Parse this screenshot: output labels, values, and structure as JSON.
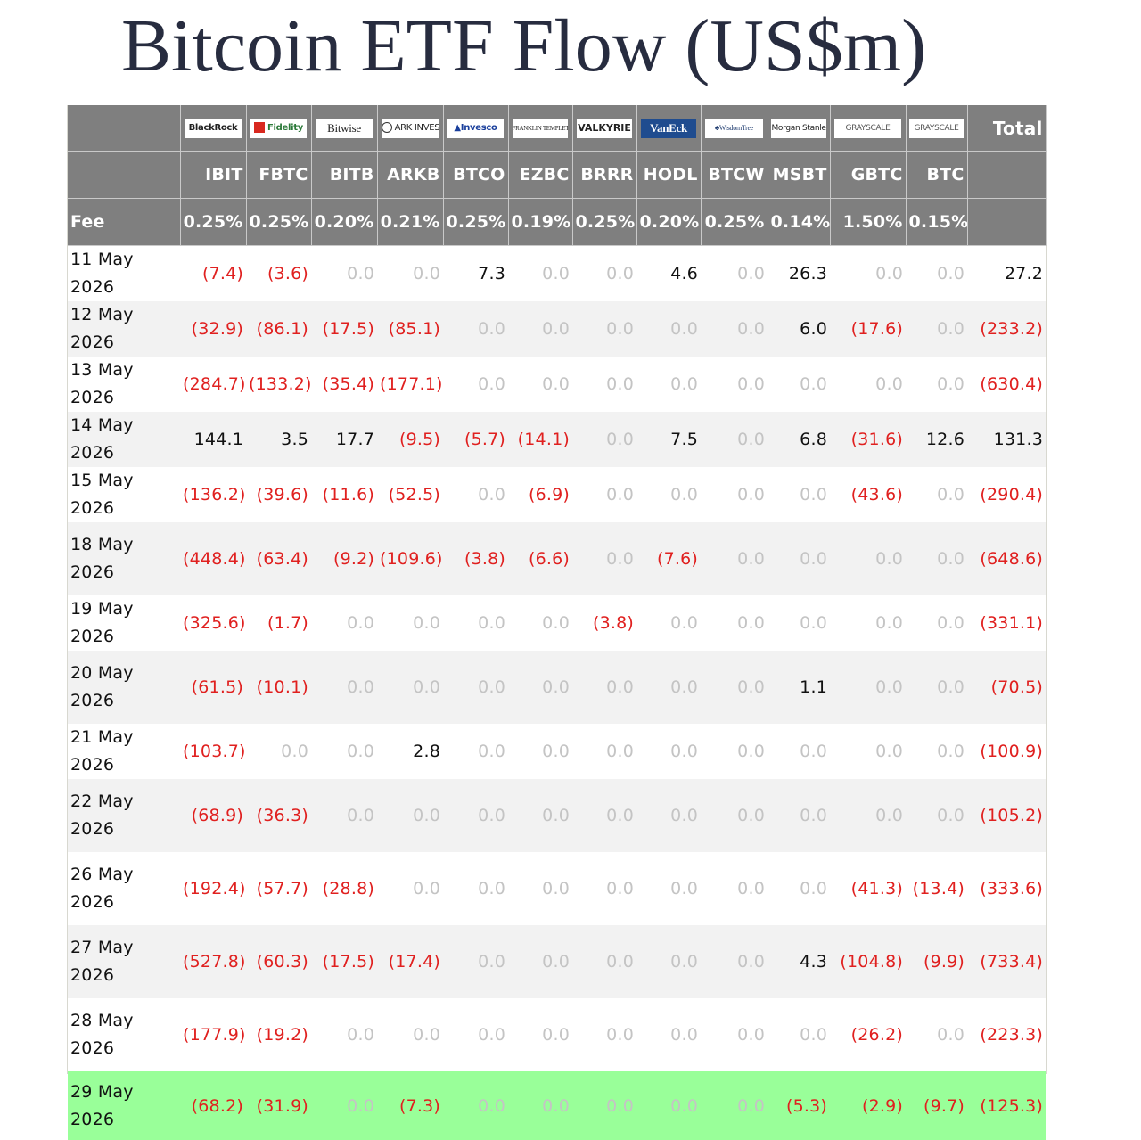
{
  "title": "Bitcoin ETF Flow (US$m)",
  "colors": {
    "header_bg": "#7f7f7f",
    "negative": "#e0201f",
    "zero": "#c4c4c4",
    "highlight_row": "#99ff99",
    "title": "#272c3f"
  },
  "header": {
    "fee_label": "Fee",
    "total_label": "Total",
    "issuers": [
      "BlackRock",
      "Fidelity",
      "Bitwise",
      "ARK INVEST",
      "Invesco",
      "FRANKLIN TEMPLETON",
      "VALKYRIE",
      "VanEck",
      "WisdomTree",
      "Morgan Stanley",
      "GRAYSCALE",
      "GRAYSCALE"
    ],
    "tickers": [
      "IBIT",
      "FBTC",
      "BITB",
      "ARKB",
      "BTCO",
      "EZBC",
      "BRRR",
      "HODL",
      "BTCW",
      "MSBT",
      "GBTC",
      "BTC"
    ],
    "fees": [
      "0.25%",
      "0.25%",
      "0.20%",
      "0.21%",
      "0.25%",
      "0.19%",
      "0.25%",
      "0.20%",
      "0.25%",
      "0.14%",
      "1.50%",
      "0.15%"
    ]
  },
  "rows": [
    {
      "date": "11 May 2026",
      "values": [
        "(7.4)",
        "(3.6)",
        "0.0",
        "0.0",
        "7.3",
        "0.0",
        "0.0",
        "4.6",
        "0.0",
        "26.3",
        "0.0",
        "0.0"
      ],
      "total": "27.2"
    },
    {
      "date": "12 May 2026",
      "values": [
        "(32.9)",
        "(86.1)",
        "(17.5)",
        "(85.1)",
        "0.0",
        "0.0",
        "0.0",
        "0.0",
        "0.0",
        "6.0",
        "(17.6)",
        "0.0"
      ],
      "total": "(233.2)"
    },
    {
      "date": "13 May 2026",
      "values": [
        "(284.7)",
        "(133.2)",
        "(35.4)",
        "(177.1)",
        "0.0",
        "0.0",
        "0.0",
        "0.0",
        "0.0",
        "0.0",
        "0.0",
        "0.0"
      ],
      "total": "(630.4)"
    },
    {
      "date": "14 May 2026",
      "values": [
        "144.1",
        "3.5",
        "17.7",
        "(9.5)",
        "(5.7)",
        "(14.1)",
        "0.0",
        "7.5",
        "0.0",
        "6.8",
        "(31.6)",
        "12.6"
      ],
      "total": "131.3"
    },
    {
      "date": "15 May 2026",
      "values": [
        "(136.2)",
        "(39.6)",
        "(11.6)",
        "(52.5)",
        "0.0",
        "(6.9)",
        "0.0",
        "0.0",
        "0.0",
        "0.0",
        "(43.6)",
        "0.0"
      ],
      "total": "(290.4)"
    },
    {
      "date": "18 May 2026",
      "values": [
        "(448.4)",
        "(63.4)",
        "(9.2)",
        "(109.6)",
        "(3.8)",
        "(6.6)",
        "0.0",
        "(7.6)",
        "0.0",
        "0.0",
        "0.0",
        "0.0"
      ],
      "total": "(648.6)"
    },
    {
      "date": "19 May 2026",
      "values": [
        "(325.6)",
        "(1.7)",
        "0.0",
        "0.0",
        "0.0",
        "0.0",
        "(3.8)",
        "0.0",
        "0.0",
        "0.0",
        "0.0",
        "0.0"
      ],
      "total": "(331.1)"
    },
    {
      "date": "20 May 2026",
      "values": [
        "(61.5)",
        "(10.1)",
        "0.0",
        "0.0",
        "0.0",
        "0.0",
        "0.0",
        "0.0",
        "0.0",
        "1.1",
        "0.0",
        "0.0"
      ],
      "total": "(70.5)"
    },
    {
      "date": "21 May 2026",
      "values": [
        "(103.7)",
        "0.0",
        "0.0",
        "2.8",
        "0.0",
        "0.0",
        "0.0",
        "0.0",
        "0.0",
        "0.0",
        "0.0",
        "0.0"
      ],
      "total": "(100.9)"
    },
    {
      "date": "22 May 2026",
      "values": [
        "(68.9)",
        "(36.3)",
        "0.0",
        "0.0",
        "0.0",
        "0.0",
        "0.0",
        "0.0",
        "0.0",
        "0.0",
        "0.0",
        "0.0"
      ],
      "total": "(105.2)"
    },
    {
      "date": "26 May 2026",
      "values": [
        "(192.4)",
        "(57.7)",
        "(28.8)",
        "0.0",
        "0.0",
        "0.0",
        "0.0",
        "0.0",
        "0.0",
        "0.0",
        "(41.3)",
        "(13.4)"
      ],
      "total": "(333.6)"
    },
    {
      "date": "27 May 2026",
      "values": [
        "(527.8)",
        "(60.3)",
        "(17.5)",
        "(17.4)",
        "0.0",
        "0.0",
        "0.0",
        "0.0",
        "0.0",
        "4.3",
        "(104.8)",
        "(9.9)"
      ],
      "total": "(733.4)"
    },
    {
      "date": "28 May 2026",
      "values": [
        "(177.9)",
        "(19.2)",
        "0.0",
        "0.0",
        "0.0",
        "0.0",
        "0.0",
        "0.0",
        "0.0",
        "0.0",
        "(26.2)",
        "0.0"
      ],
      "total": "(223.3)"
    },
    {
      "date": "29 May 2026",
      "values": [
        "(68.2)",
        "(31.9)",
        "0.0",
        "(7.3)",
        "0.0",
        "0.0",
        "0.0",
        "0.0",
        "0.0",
        "(5.3)",
        "(2.9)",
        "(9.7)"
      ],
      "total": "(125.3)"
    }
  ]
}
